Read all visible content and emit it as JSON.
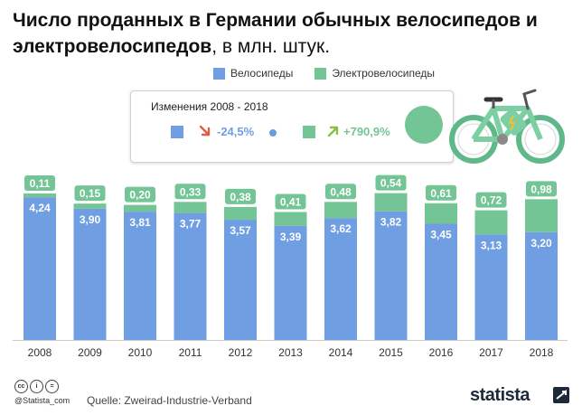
{
  "title": {
    "bold": "Число проданных в Германии обычных велосипедов и электровелосипедов",
    "normal": ", в млн. штук."
  },
  "legend": {
    "series1": "Велосипеды",
    "series2": "Электровелосипеды"
  },
  "changes_box": {
    "header": "Изменения 2008 - 2018",
    "bikes_change": "-24,5%",
    "ebikes_change": "+790,9%"
  },
  "colors": {
    "bikes": "#6f9ee2",
    "ebikes": "#74c595",
    "down_arrow": "#e05a45",
    "up_arrow": "#8bbf3f",
    "axis": "#cccccc",
    "label_text": "#ffffff"
  },
  "icons": {
    "bicycle": "e-bike-icon",
    "arrow_down": "arrow-down-right-icon",
    "arrow_up": "arrow-up-right-icon",
    "cc": "creative-commons-icon",
    "brand": "statista-logo-icon"
  },
  "footer": {
    "handle": "@Statista_com",
    "source": "Quelle: Zweirad-Industrie-Verband",
    "brand": "statista"
  },
  "chart_data": {
    "type": "bar",
    "stacked": true,
    "categories": [
      "2008",
      "2009",
      "2010",
      "2011",
      "2012",
      "2013",
      "2014",
      "2015",
      "2016",
      "2017",
      "2018"
    ],
    "series": [
      {
        "name": "Велосипеды",
        "values": [
          4.24,
          3.9,
          3.81,
          3.77,
          3.57,
          3.39,
          3.62,
          3.82,
          3.45,
          3.13,
          3.2
        ],
        "labels": [
          "4,24",
          "3,90",
          "3,81",
          "3,77",
          "3,57",
          "3,39",
          "3,62",
          "3,82",
          "3,45",
          "3,13",
          "3,20"
        ]
      },
      {
        "name": "Электровелосипеды",
        "values": [
          0.11,
          0.15,
          0.2,
          0.33,
          0.38,
          0.41,
          0.48,
          0.54,
          0.61,
          0.72,
          0.98
        ],
        "labels": [
          "0,11",
          "0,15",
          "0,20",
          "0,33",
          "0,38",
          "0,41",
          "0,48",
          "0,54",
          "0,61",
          "0,72",
          "0,98"
        ]
      }
    ],
    "ylim": [
      0,
      4.35
    ],
    "grid": false,
    "legend_position": "top"
  }
}
